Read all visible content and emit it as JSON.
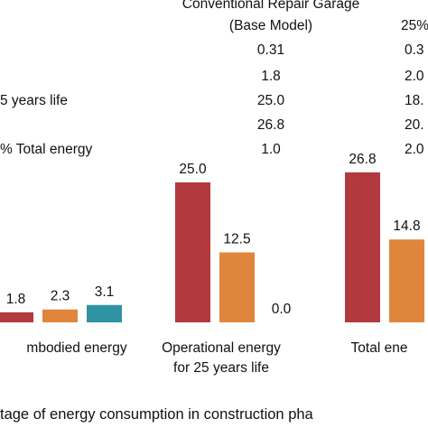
{
  "table": {
    "header_line1": "Conventional Repair Garage",
    "header_line2": "(Base  Model)",
    "header_right": "25%",
    "rows": [
      {
        "label": "",
        "base": "0.31",
        "right": "0.3"
      },
      {
        "label": "",
        "base": "1.8",
        "right": "2.0"
      },
      {
        "label": "5 years life",
        "base": "25.0",
        "right": "18."
      },
      {
        "label": "",
        "base": "26.8",
        "right": "20."
      },
      {
        "label": "% Total energy",
        "base": "1.0",
        "right": "2.0"
      }
    ]
  },
  "caption": "tage of energy consumption in construction pha",
  "colors": {
    "red": "#b23a3f",
    "orange": "#e0863c",
    "teal": "#2f93a3"
  },
  "chart_data": {
    "type": "bar",
    "categories": [
      "mbodied energy",
      "Operational energy for 25 years life",
      "Total ene"
    ],
    "category_label_lines": [
      [
        "mbodied energy"
      ],
      [
        "Operational energy",
        "for 25 years life"
      ],
      [
        "Total ene"
      ]
    ],
    "series": [
      {
        "color": "#b23a3f",
        "values": [
          1.8,
          25.0,
          26.8
        ],
        "labels": [
          "1.8",
          "25.0",
          "26.8"
        ]
      },
      {
        "color": "#e0863c",
        "values": [
          2.3,
          12.5,
          14.8
        ],
        "labels": [
          "2.3",
          "12.5",
          "14.8"
        ]
      },
      {
        "color": "#2f93a3",
        "values": [
          3.1,
          0.0,
          null
        ],
        "labels": [
          "3.1",
          "0.0",
          ""
        ]
      }
    ],
    "ylim": [
      0,
      27.5
    ],
    "grid": false
  }
}
